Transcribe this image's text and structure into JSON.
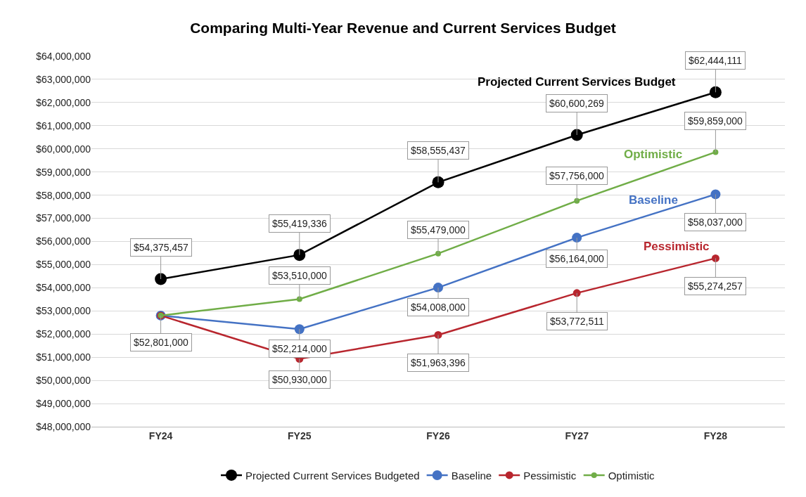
{
  "chart_data": {
    "type": "line",
    "title": "Comparing Multi-Year Revenue and Current Services Budget",
    "categories": [
      "FY24",
      "FY25",
      "FY26",
      "FY27",
      "FY28"
    ],
    "series": [
      {
        "name": "Projected Current Services Budgeted",
        "color": "#000000",
        "values": [
          54375457,
          55419336,
          58555437,
          60600269,
          62444111
        ],
        "value_labels": [
          "$54,375,457",
          "$55,419,336",
          "$58,555,437",
          "$60,600,269",
          "$62,444,111"
        ]
      },
      {
        "name": "Baseline",
        "color": "#4472c4",
        "values": [
          52800000,
          52214000,
          54008000,
          56164000,
          58037000
        ],
        "value_labels": [
          null,
          "$52,214,000",
          "$54,008,000",
          "$56,164,000",
          "$58,037,000"
        ]
      },
      {
        "name": "Pessimistic",
        "color": "#b8262e",
        "values": [
          52800000,
          50930000,
          51963396,
          53772511,
          55274257
        ],
        "value_labels": [
          null,
          "$50,930,000",
          "$51,963,396",
          "$53,772,511",
          "$55,274,257"
        ]
      },
      {
        "name": "Optimistic",
        "color": "#70ad47",
        "values": [
          52801000,
          53510000,
          55479000,
          57756000,
          59859000
        ],
        "value_labels": [
          "$52,801,000",
          "$53,510,000",
          "$55,479,000",
          "$57,756,000",
          "$59,859,000"
        ]
      }
    ],
    "annotations": [
      "Projected Current Services Budget",
      "Optimistic",
      "Baseline",
      "Pessimistic"
    ],
    "ylim": [
      48000000,
      64000000
    ],
    "yticks": [
      {
        "value": 48000000,
        "label": "$48,000,000"
      },
      {
        "value": 49000000,
        "label": "$49,000,000"
      },
      {
        "value": 50000000,
        "label": "$50,000,000"
      },
      {
        "value": 51000000,
        "label": "$51,000,000"
      },
      {
        "value": 52000000,
        "label": "$52,000,000"
      },
      {
        "value": 53000000,
        "label": "$53,000,000"
      },
      {
        "value": 54000000,
        "label": "$54,000,000"
      },
      {
        "value": 55000000,
        "label": "$55,000,000"
      },
      {
        "value": 56000000,
        "label": "$56,000,000"
      },
      {
        "value": 57000000,
        "label": "$57,000,000"
      },
      {
        "value": 58000000,
        "label": "$58,000,000"
      },
      {
        "value": 59000000,
        "label": "$59,000,000"
      },
      {
        "value": 60000000,
        "label": "$60,000,000"
      },
      {
        "value": 61000000,
        "label": "$61,000,000"
      },
      {
        "value": 62000000,
        "label": "$62,000,000"
      },
      {
        "value": 63000000,
        "label": "$63,000,000"
      },
      {
        "value": 64000000,
        "label": "$64,000,000"
      }
    ],
    "grid": "y",
    "legend": "bottom",
    "marker": "circle",
    "line_style": "solid"
  }
}
